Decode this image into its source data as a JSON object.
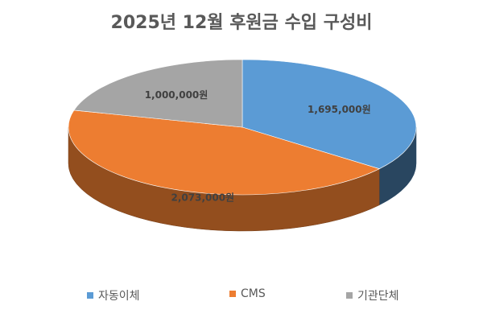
{
  "chart_data": {
    "type": "pie",
    "title": "2025년 12월 후원금 수입 구성비",
    "slices": [
      {
        "label": "자동이체",
        "value": 1695000,
        "data_label": "1,695,000원",
        "color": "#5B9BD5"
      },
      {
        "label": "CMS",
        "value": 2073000,
        "data_label": "2,073,000원",
        "color": "#ED7D31"
      },
      {
        "label": "기관단체",
        "value": 1000000,
        "data_label": "1,000,000원",
        "color": "#A5A5A5"
      }
    ],
    "legend_position": "bottom",
    "style": "3d"
  }
}
